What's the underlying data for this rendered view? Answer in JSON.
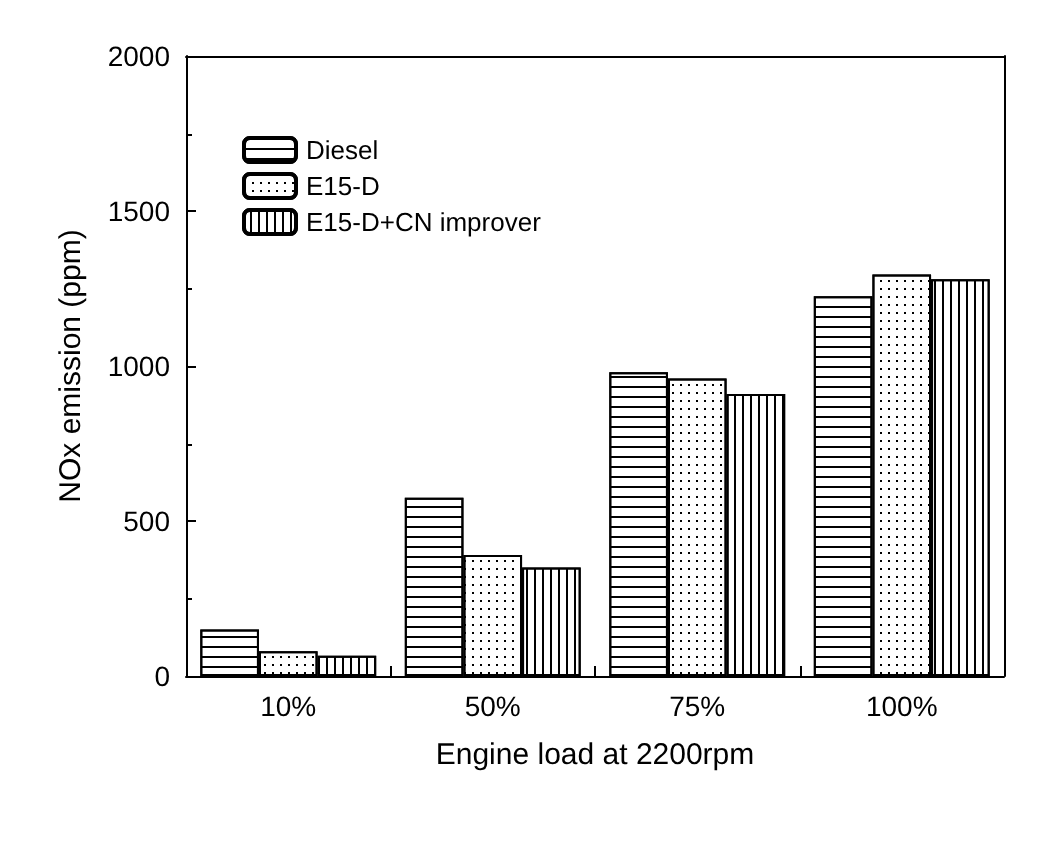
{
  "chart_data": {
    "type": "bar",
    "xlabel": "Engine load at 2200rpm",
    "ylabel": "NOx emission (ppm)",
    "categories": [
      "10%",
      "50%",
      "75%",
      "100%"
    ],
    "series": [
      {
        "name": "Diesel",
        "color": "#ffffff",
        "values": [
          150,
          575,
          980,
          1225
        ]
      },
      {
        "name": "E15-D",
        "color": "#ffffff",
        "values": [
          80,
          390,
          960,
          1295
        ]
      },
      {
        "name": "E15-D+CN improver",
        "color": "#ffffff",
        "values": [
          65,
          350,
          910,
          1280
        ]
      }
    ],
    "ylim": [
      0,
      2000
    ],
    "yticks": [
      0,
      500,
      1000,
      1500,
      2000
    ],
    "grid": false,
    "legend": "top left"
  }
}
